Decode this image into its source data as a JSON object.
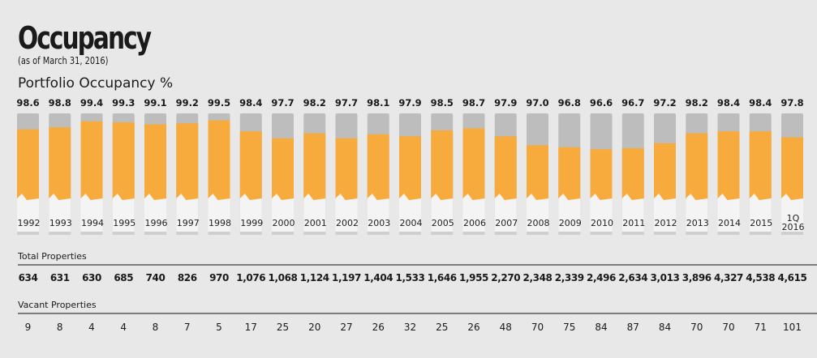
{
  "header": {
    "title": "Occupancy",
    "subtitle": "(as of March 31, 2016)",
    "chart_heading": "Portfolio Occupancy %"
  },
  "colors": {
    "background": "#e8e8e8",
    "bar_fill": "#f7ab3c",
    "bar_track": "#bdbdbd",
    "label_box": "#f4f4f4"
  },
  "chart_data": {
    "type": "bar",
    "categories": [
      "1992",
      "1993",
      "1994",
      "1995",
      "1996",
      "1997",
      "1998",
      "1999",
      "2000",
      "2001",
      "2002",
      "2003",
      "2004",
      "2005",
      "2006",
      "2007",
      "2008",
      "2009",
      "2010",
      "2011",
      "2012",
      "2013",
      "2014",
      "2015",
      "1Q 2016"
    ],
    "category_lines": [
      [
        "1992"
      ],
      [
        "1993"
      ],
      [
        "1994"
      ],
      [
        "1995"
      ],
      [
        "1996"
      ],
      [
        "1997"
      ],
      [
        "1998"
      ],
      [
        "1999"
      ],
      [
        "2000"
      ],
      [
        "2001"
      ],
      [
        "2002"
      ],
      [
        "2003"
      ],
      [
        "2004"
      ],
      [
        "2005"
      ],
      [
        "2006"
      ],
      [
        "2007"
      ],
      [
        "2008"
      ],
      [
        "2009"
      ],
      [
        "2010"
      ],
      [
        "2011"
      ],
      [
        "2012"
      ],
      [
        "2013"
      ],
      [
        "2014"
      ],
      [
        "2015"
      ],
      [
        "1Q",
        "2016"
      ]
    ],
    "values": [
      98.6,
      98.8,
      99.4,
      99.3,
      99.1,
      99.2,
      99.5,
      98.4,
      97.7,
      98.2,
      97.7,
      98.1,
      97.9,
      98.5,
      98.7,
      97.9,
      97.0,
      96.8,
      96.6,
      96.7,
      97.2,
      98.2,
      98.4,
      98.4,
      97.8
    ],
    "value_labels": [
      "98.6",
      "98.8",
      "99.4",
      "99.3",
      "99.1",
      "99.2",
      "99.5",
      "98.4",
      "97.7",
      "98.2",
      "97.7",
      "98.1",
      "97.9",
      "98.5",
      "98.7",
      "97.9",
      "97.0",
      "96.8",
      "96.6",
      "96.7",
      "97.2",
      "98.2",
      "98.4",
      "98.4",
      "97.8"
    ],
    "title": "Portfolio Occupancy %",
    "xlabel": "",
    "ylabel": "",
    "grid": false
  },
  "tables": {
    "total_properties": {
      "label": "Total Properties",
      "values": [
        "634",
        "631",
        "630",
        "685",
        "740",
        "826",
        "970",
        "1,076",
        "1,068",
        "1,124",
        "1,197",
        "1,404",
        "1,533",
        "1,646",
        "1,955",
        "2,270",
        "2,348",
        "2,339",
        "2,496",
        "2,634",
        "3,013",
        "3,896",
        "4,327",
        "4,538",
        "4,615"
      ]
    },
    "vacant_properties": {
      "label": "Vacant  Properties",
      "values": [
        "9",
        "8",
        "4",
        "4",
        "8",
        "7",
        "5",
        "17",
        "25",
        "20",
        "27",
        "26",
        "32",
        "25",
        "26",
        "48",
        "70",
        "75",
        "84",
        "87",
        "84",
        "70",
        "70",
        "71",
        "101"
      ]
    }
  }
}
